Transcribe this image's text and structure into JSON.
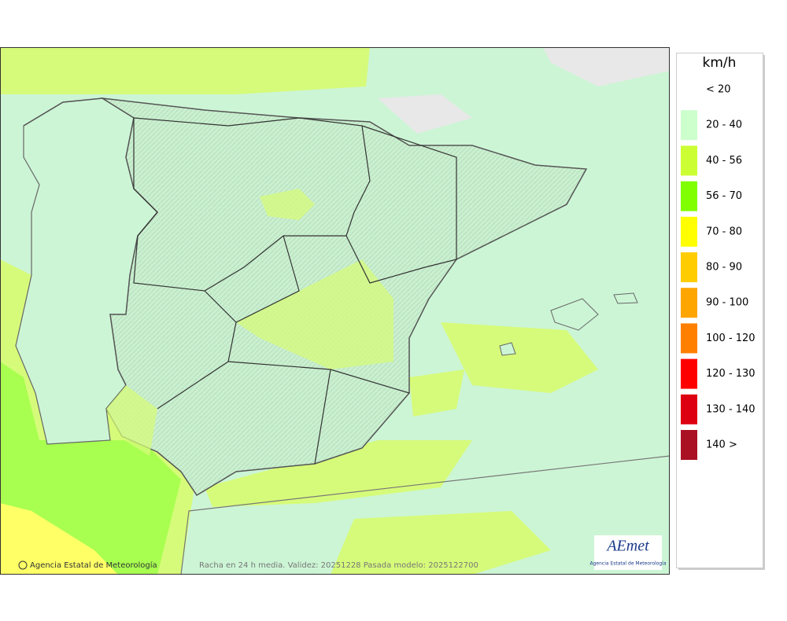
{
  "legend": {
    "title": "km/h",
    "items": [
      {
        "label": "< 20"
      },
      {
        "label": "20 - 40",
        "color": "#ccffcc"
      },
      {
        "label": "40 - 56",
        "color": "#ccff33"
      },
      {
        "label": "56 - 70",
        "color": "#80ff00"
      },
      {
        "label": "70 - 80",
        "color": "#ffff00"
      },
      {
        "label": "80 - 90",
        "color": "#ffcc00"
      },
      {
        "label": "90 - 100",
        "color": "#ffa500"
      },
      {
        "label": "100 - 120",
        "color": "#ff8000"
      },
      {
        "label": "120 - 130",
        "color": "#ff0000"
      },
      {
        "label": "130 - 140",
        "color": "#dd0011"
      },
      {
        "label": "140 >",
        "color": "#aa1122"
      }
    ]
  },
  "map": {
    "credit": "Agencia Estatal de Meteorología",
    "caption": "Racha en 24 h media. Validez: 20251228 Pasada modelo: 2025122700"
  },
  "logo": {
    "name": "AEmet",
    "subtitle": "Agencia Estatal de Meteorología"
  }
}
